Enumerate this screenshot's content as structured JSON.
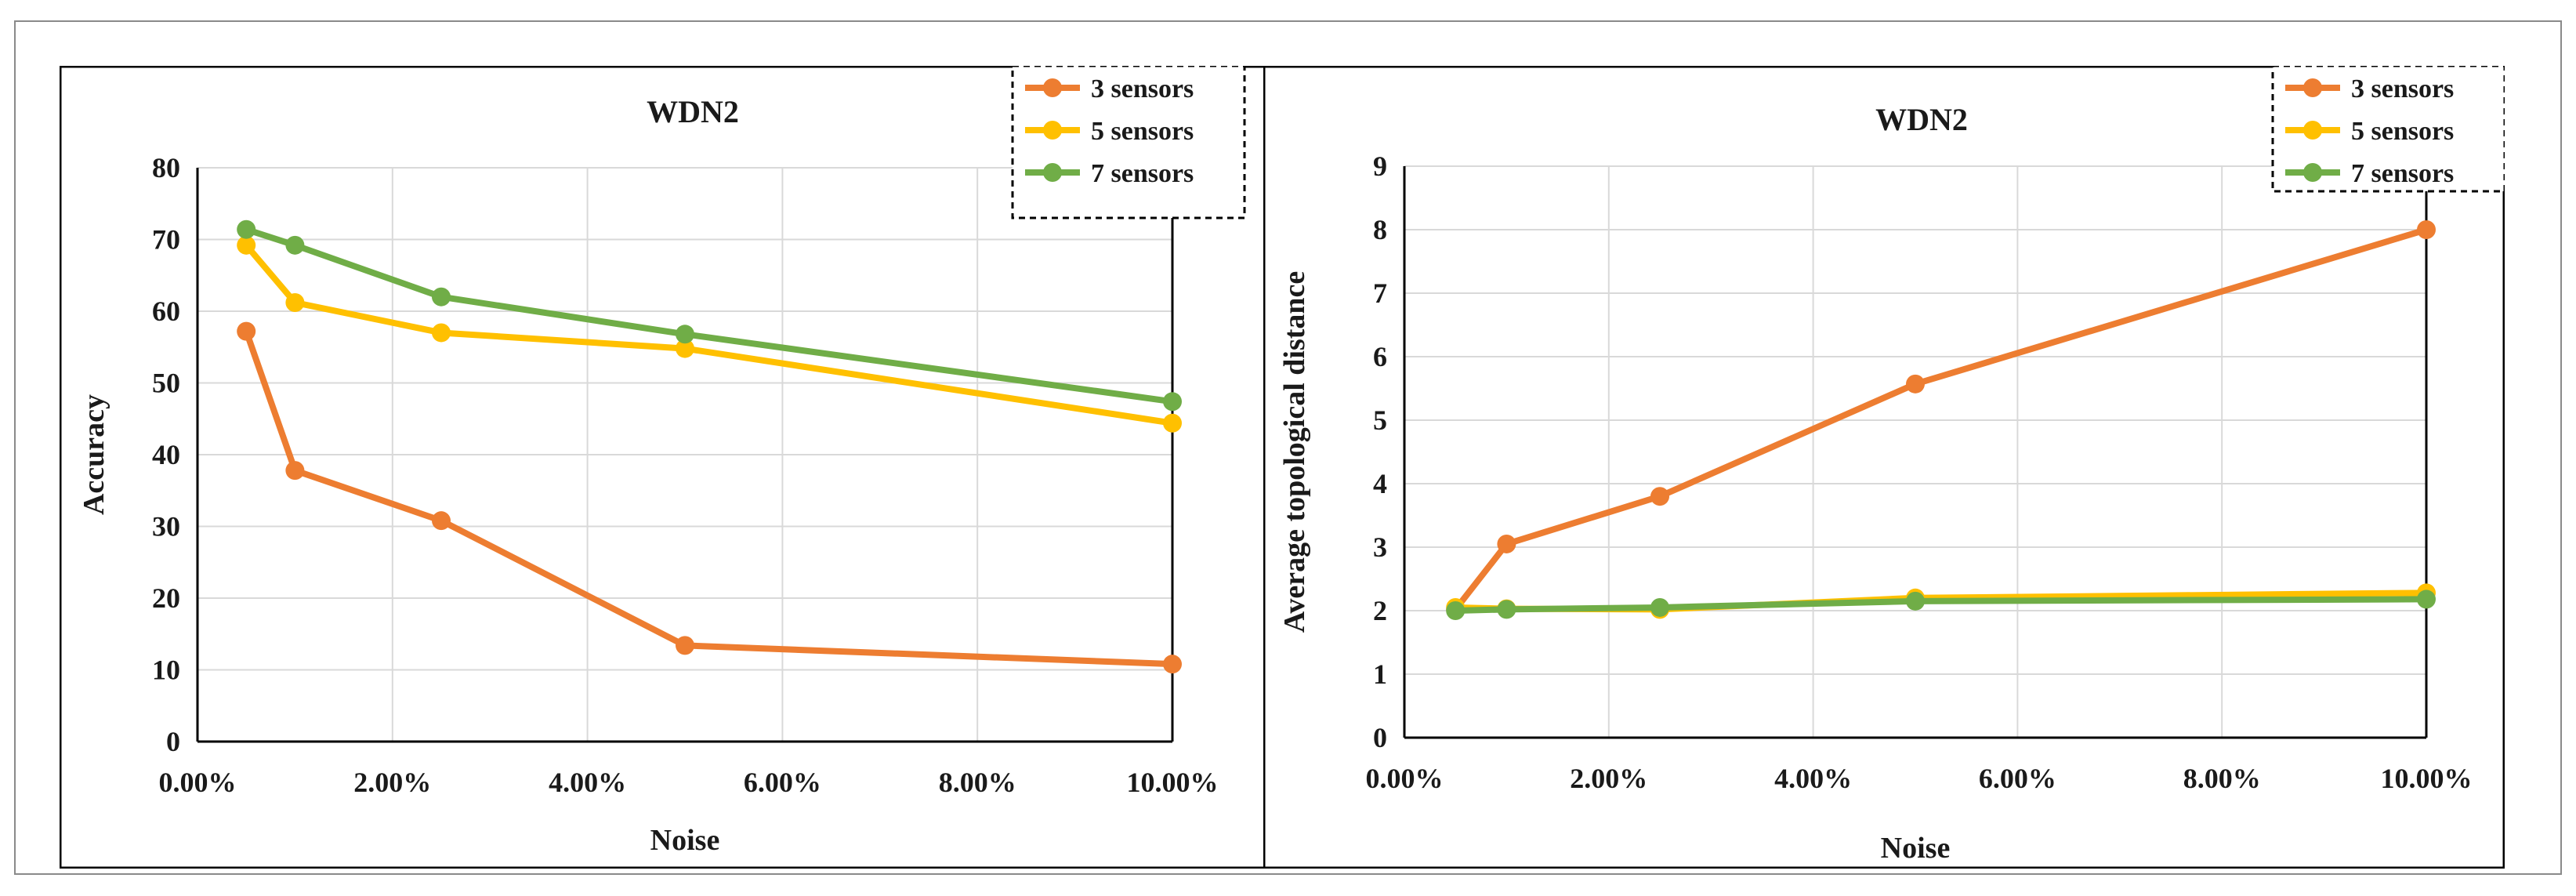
{
  "colors": {
    "series_3": "#ED7D31",
    "series_5": "#FFC000",
    "series_7": "#70AD47",
    "grid": "#d9d9d9",
    "axis": "#000000"
  },
  "chart_data": [
    {
      "type": "line",
      "title": "WDN2",
      "xlabel": "Noise",
      "ylabel": "Accuracy",
      "xlim": [
        0,
        10
      ],
      "ylim": [
        0,
        80
      ],
      "x_ticks": [
        0,
        2,
        4,
        6,
        8,
        10
      ],
      "x_tick_labels": [
        "0.00%",
        "2.00%",
        "4.00%",
        "6.00%",
        "8.00%",
        "10.00%"
      ],
      "y_ticks": [
        0,
        10,
        20,
        30,
        40,
        50,
        60,
        70,
        80
      ],
      "y_tick_labels": [
        "0",
        "10",
        "20",
        "30",
        "40",
        "50",
        "60",
        "70",
        "80"
      ],
      "grid": true,
      "legend_position": "top-right",
      "x": [
        0.5,
        1,
        2.5,
        5,
        10
      ],
      "series": [
        {
          "name": "3 sensors",
          "color_key": "series_3",
          "values": [
            57.2,
            37.8,
            30.8,
            13.4,
            10.8
          ]
        },
        {
          "name": "5 sensors",
          "color_key": "series_5",
          "values": [
            69.2,
            61.2,
            57.0,
            54.8,
            44.4
          ]
        },
        {
          "name": "7 sensors",
          "color_key": "series_7",
          "values": [
            71.4,
            69.2,
            62.0,
            56.8,
            47.4
          ]
        }
      ]
    },
    {
      "type": "line",
      "title": "WDN2",
      "xlabel": "Noise",
      "ylabel": "Average topological distance",
      "xlim": [
        0,
        10
      ],
      "ylim": [
        0,
        9
      ],
      "x_ticks": [
        0,
        2,
        4,
        6,
        8,
        10
      ],
      "x_tick_labels": [
        "0.00%",
        "2.00%",
        "4.00%",
        "6.00%",
        "8.00%",
        "10.00%"
      ],
      "y_ticks": [
        0,
        1,
        2,
        3,
        4,
        5,
        6,
        7,
        8,
        9
      ],
      "y_tick_labels": [
        "0",
        "1",
        "2",
        "3",
        "4",
        "5",
        "6",
        "7",
        "8",
        "9"
      ],
      "grid": true,
      "legend_position": "top-right",
      "x": [
        0.5,
        1,
        2.5,
        5,
        10
      ],
      "series": [
        {
          "name": "3 sensors",
          "color_key": "series_3",
          "values": [
            2.02,
            3.05,
            3.8,
            5.57,
            8.0
          ]
        },
        {
          "name": "5 sensors",
          "color_key": "series_5",
          "values": [
            2.05,
            2.03,
            2.02,
            2.2,
            2.28
          ]
        },
        {
          "name": "7 sensors",
          "color_key": "series_7",
          "values": [
            2.0,
            2.02,
            2.05,
            2.15,
            2.18
          ]
        }
      ]
    }
  ]
}
